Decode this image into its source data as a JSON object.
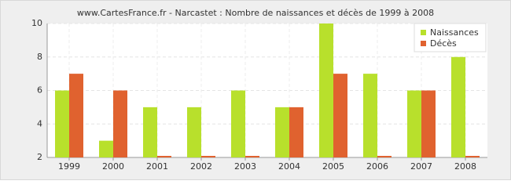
{
  "chart_data": {
    "type": "bar",
    "title": "www.CartesFrance.fr - Narcastet : Nombre de naissances et décès de 1999 à 2008",
    "categories": [
      "1999",
      "2000",
      "2001",
      "2002",
      "2003",
      "2004",
      "2005",
      "2006",
      "2007",
      "2008"
    ],
    "series": [
      {
        "name": "Naissances",
        "color": "#b8e02c",
        "values": [
          6,
          3,
          5,
          5,
          6,
          5,
          10,
          7,
          6,
          8
        ]
      },
      {
        "name": "Décès",
        "color": "#e0622f",
        "values": [
          7,
          6,
          2,
          2,
          2,
          5,
          7,
          2,
          6,
          2
        ]
      }
    ],
    "ylim": [
      2,
      10
    ],
    "yticks": [
      2,
      4,
      6,
      8,
      10
    ],
    "grid": true,
    "legend": "top-right"
  }
}
